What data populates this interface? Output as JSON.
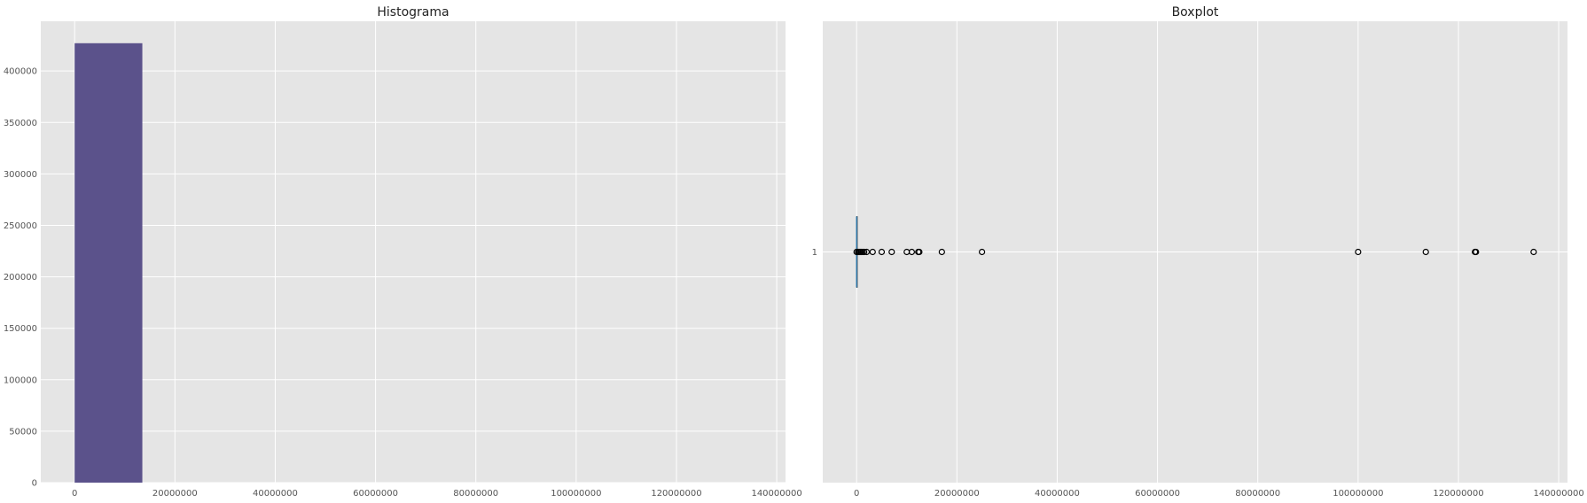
{
  "chart_data": [
    {
      "type": "bar",
      "subtype": "histogram",
      "title": "Histograma",
      "xlabel": "",
      "ylabel": "",
      "xlim": [
        -6750000,
        141750000
      ],
      "ylim": [
        0,
        448350
      ],
      "x_ticks": [
        0,
        20000000,
        40000000,
        60000000,
        80000000,
        100000000,
        120000000,
        140000000
      ],
      "x_tick_labels": [
        "0",
        "20000000",
        "40000000",
        "60000000",
        "80000000",
        "100000000",
        "120000000",
        "140000000"
      ],
      "y_ticks": [
        0,
        50000,
        100000,
        150000,
        200000,
        250000,
        300000,
        350000,
        400000
      ],
      "y_tick_labels": [
        "0",
        "50000",
        "100000",
        "150000",
        "200000",
        "250000",
        "300000",
        "350000",
        "400000"
      ],
      "bins": [
        {
          "x0": 0,
          "x1": 13500000,
          "count": 427000
        },
        {
          "x0": 13500000,
          "x1": 27000000,
          "count": 12
        },
        {
          "x0": 27000000,
          "x1": 40500000,
          "count": 0
        },
        {
          "x0": 40500000,
          "x1": 54000000,
          "count": 0
        },
        {
          "x0": 54000000,
          "x1": 67500000,
          "count": 0
        },
        {
          "x0": 67500000,
          "x1": 81000000,
          "count": 0
        },
        {
          "x0": 81000000,
          "x1": 94500000,
          "count": 0
        },
        {
          "x0": 94500000,
          "x1": 108000000,
          "count": 1
        },
        {
          "x0": 108000000,
          "x1": 121500000,
          "count": 1
        },
        {
          "x0": 121500000,
          "x1": 135000000,
          "count": 3
        }
      ],
      "bar_color": "#5b528b",
      "grid": true,
      "background": "#e5e5e5"
    },
    {
      "type": "boxplot",
      "orientation": "horizontal",
      "title": "Boxplot",
      "xlabel": "",
      "ylabel": "",
      "xlim": [
        -6750000,
        141750000
      ],
      "x_ticks": [
        0,
        20000000,
        40000000,
        60000000,
        80000000,
        100000000,
        120000000,
        140000000
      ],
      "x_tick_labels": [
        "0",
        "20000000",
        "40000000",
        "60000000",
        "80000000",
        "100000000",
        "120000000",
        "140000000"
      ],
      "category_label": "1",
      "median": 0,
      "q1": 0,
      "q3": 0,
      "whisker_low": 0,
      "whisker_high": 0,
      "outliers": [
        0,
        300000,
        500000,
        700000,
        900000,
        1200000,
        1500000,
        2000000,
        3200000,
        5000000,
        7000000,
        10000000,
        11000000,
        12300000,
        12500000,
        17000000,
        25000000,
        100000000,
        113500000,
        123300000,
        123500000,
        135000000
      ],
      "median_color": "#1f77b4",
      "outlier_edge_color": "#000000",
      "grid": true,
      "background": "#e5e5e5"
    }
  ]
}
